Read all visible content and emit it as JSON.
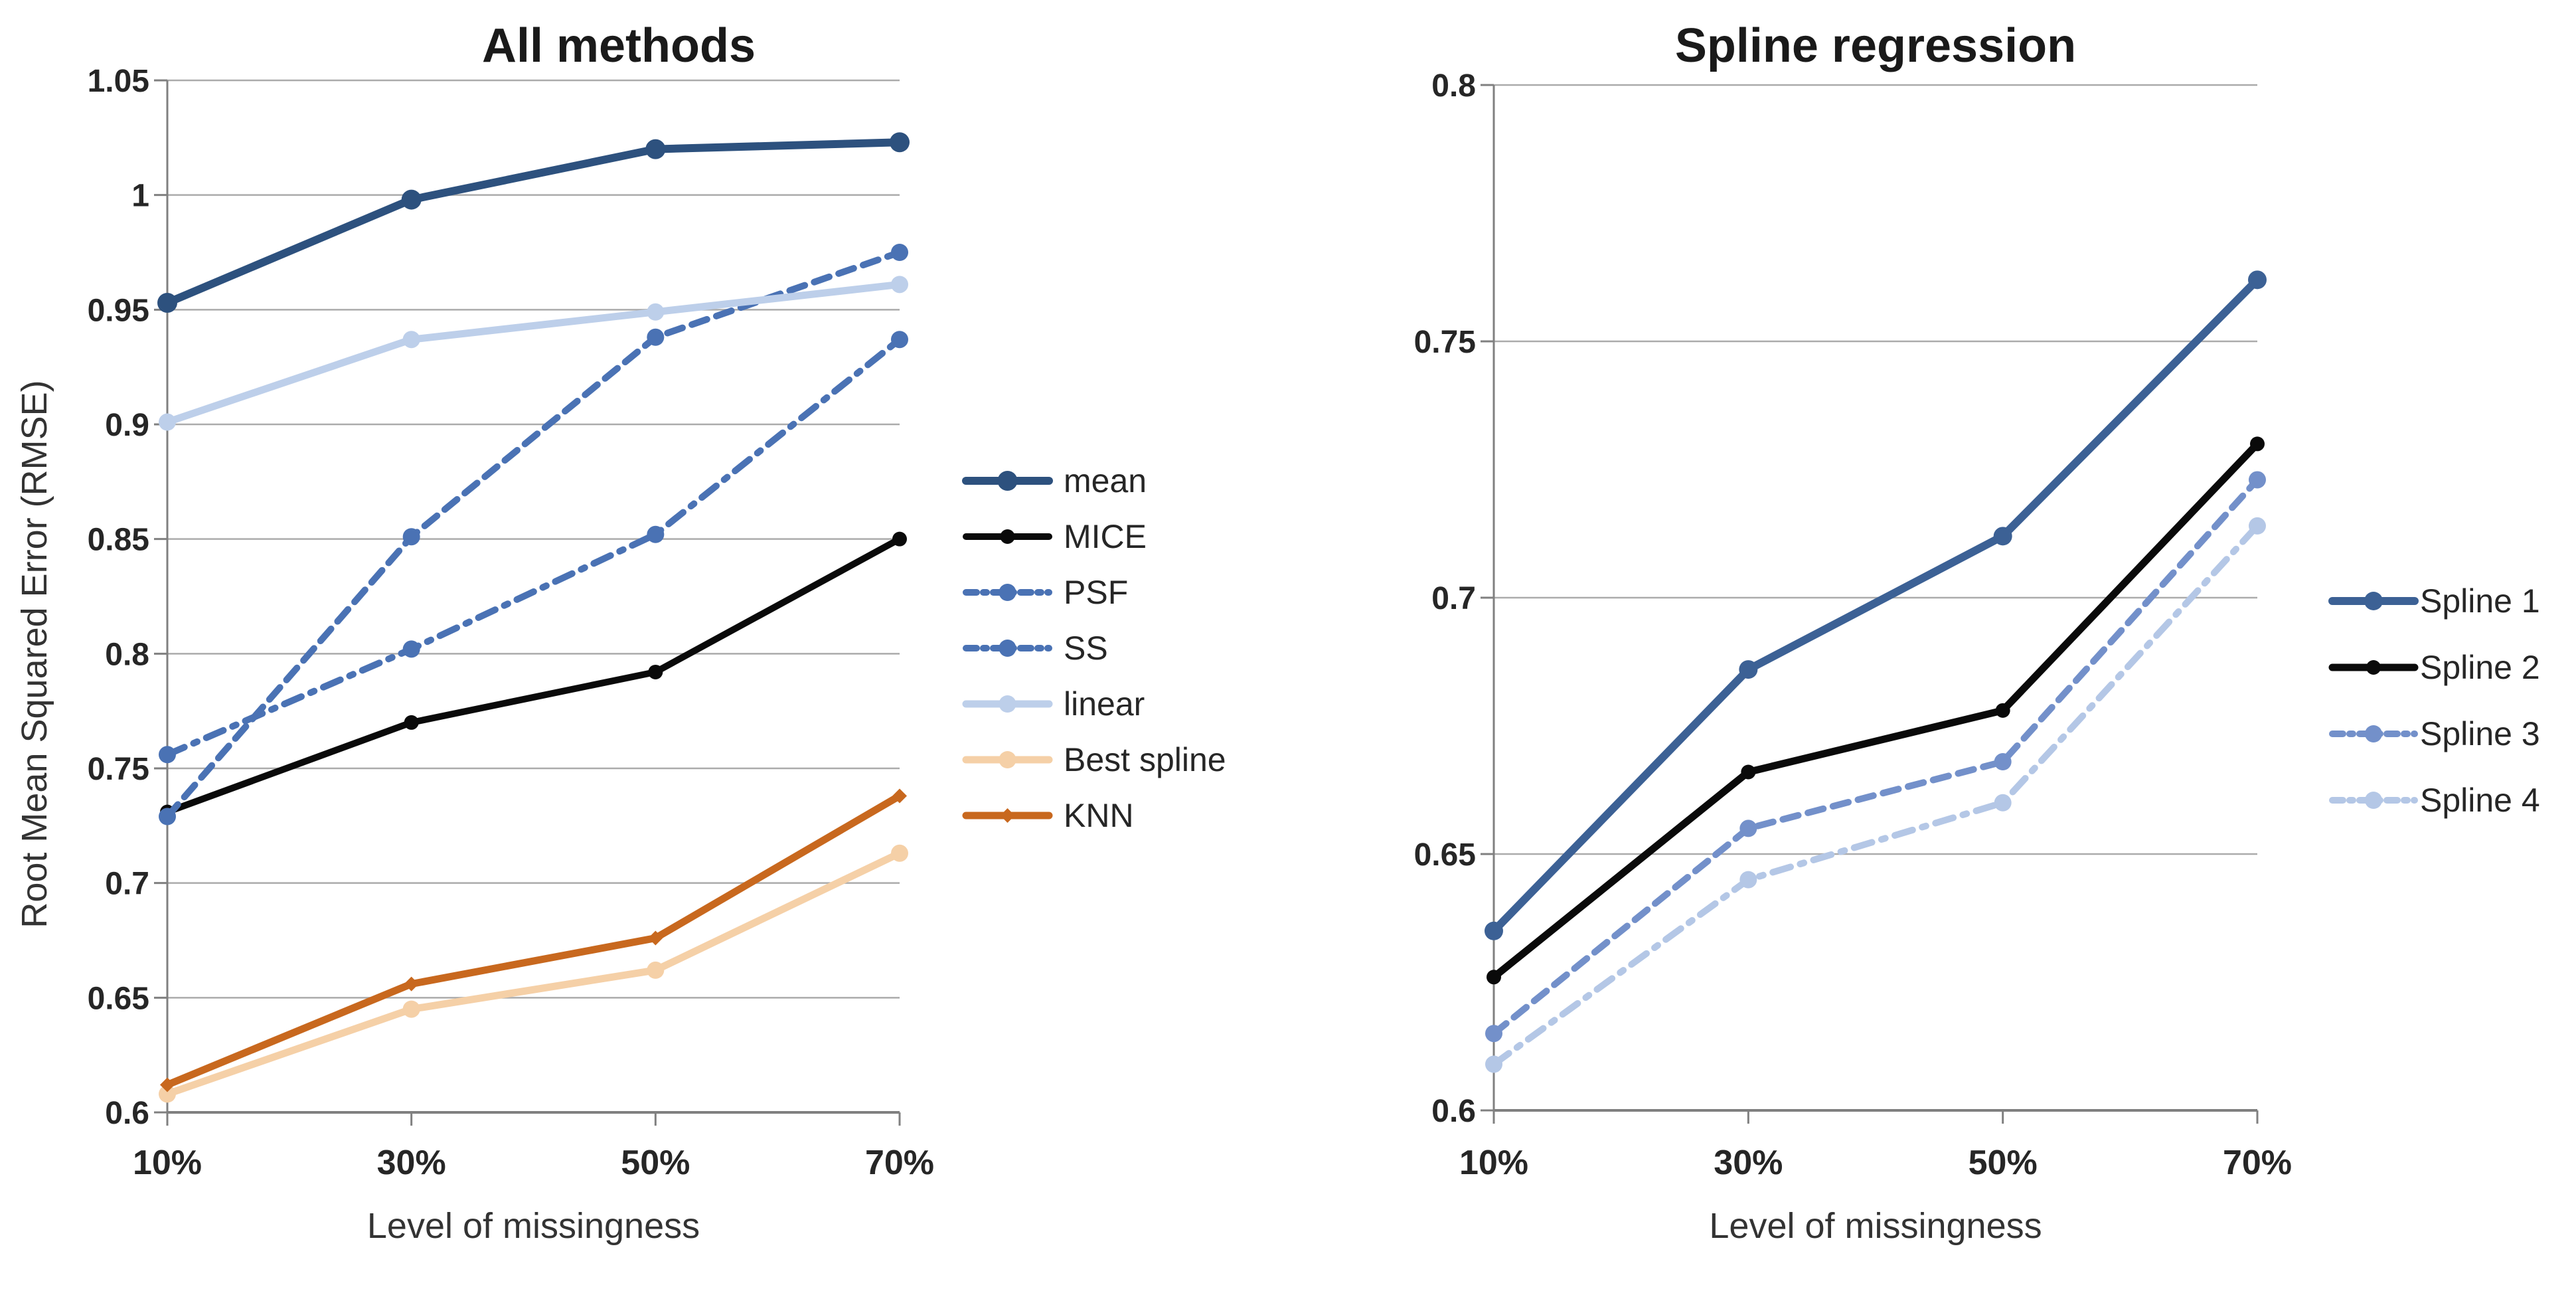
{
  "chart_data": [
    {
      "type": "line",
      "title": "All methods",
      "xlabel": "Level of missingness",
      "ylabel": "Root Mean Squared Error (RMSE)",
      "categories": [
        "10%",
        "30%",
        "50%",
        "70%"
      ],
      "ylim": [
        0.6,
        1.05
      ],
      "ytick_labels": [
        "0.6",
        "0.65",
        "0.7",
        "0.75",
        "0.8",
        "0.85",
        "0.9",
        "0.95",
        "1",
        "1.05"
      ],
      "grid": true,
      "legend_position": "right",
      "series": [
        {
          "name": "mean",
          "values": [
            0.953,
            0.998,
            1.02,
            1.023
          ],
          "color": "#2D517E",
          "style": "solid",
          "marker": "circle",
          "line_width": 12,
          "marker_size": 15
        },
        {
          "name": "MICE",
          "values": [
            0.731,
            0.77,
            0.792,
            0.85
          ],
          "color": "#0A0A0A",
          "style": "solid",
          "marker": "circle",
          "line_width": 10,
          "marker_size": 11
        },
        {
          "name": "PSF",
          "values": [
            0.729,
            0.851,
            0.938,
            0.975
          ],
          "color": "#4A72B4",
          "style": "dashed",
          "marker": "circle",
          "line_width": 10,
          "marker_size": 13
        },
        {
          "name": "SS",
          "values": [
            0.756,
            0.802,
            0.852,
            0.937
          ],
          "color": "#4A72B4",
          "style": "dashdot",
          "marker": "circle",
          "line_width": 10,
          "marker_size": 13
        },
        {
          "name": "linear",
          "values": [
            0.901,
            0.937,
            0.949,
            0.961
          ],
          "color": "#BDCFEA",
          "style": "solid",
          "marker": "circle",
          "line_width": 11,
          "marker_size": 13
        },
        {
          "name": "Best spline",
          "values": [
            0.608,
            0.645,
            0.662,
            0.713
          ],
          "color": "#F5D0A7",
          "style": "solid",
          "marker": "circle",
          "line_width": 11,
          "marker_size": 13
        },
        {
          "name": "KNN",
          "values": [
            0.612,
            0.656,
            0.676,
            0.738
          ],
          "color": "#C8681E",
          "style": "solid",
          "marker": "diamond",
          "line_width": 11,
          "marker_size": 11
        }
      ]
    },
    {
      "type": "line",
      "title": "Spline regression",
      "xlabel": "Level of missingness",
      "ylabel": "",
      "categories": [
        "10%",
        "30%",
        "50%",
        "70%"
      ],
      "ylim": [
        0.6,
        0.8
      ],
      "ytick_labels": [
        "0.6",
        "0.65",
        "0.7",
        "0.75",
        "0.8"
      ],
      "grid": true,
      "legend_position": "right",
      "series": [
        {
          "name": "Spline 1",
          "values": [
            0.635,
            0.686,
            0.712,
            0.762
          ],
          "color": "#3C6195",
          "style": "solid",
          "marker": "circle",
          "line_width": 12,
          "marker_size": 14
        },
        {
          "name": "Spline 2",
          "values": [
            0.626,
            0.666,
            0.678,
            0.73
          ],
          "color": "#0A0A0A",
          "style": "solid",
          "marker": "circle",
          "line_width": 11,
          "marker_size": 11
        },
        {
          "name": "Spline 3",
          "values": [
            0.615,
            0.655,
            0.668,
            0.723
          ],
          "color": "#7390CA",
          "style": "dashed",
          "marker": "circle",
          "line_width": 10,
          "marker_size": 13
        },
        {
          "name": "Spline 4",
          "values": [
            0.609,
            0.645,
            0.66,
            0.714
          ],
          "color": "#B4C7E6",
          "style": "dashdot",
          "marker": "circle",
          "line_width": 10,
          "marker_size": 13
        }
      ]
    }
  ],
  "style": {
    "grid_color": "#ABABAB",
    "axis_color": "#808080",
    "background": "#FFFFFF"
  }
}
